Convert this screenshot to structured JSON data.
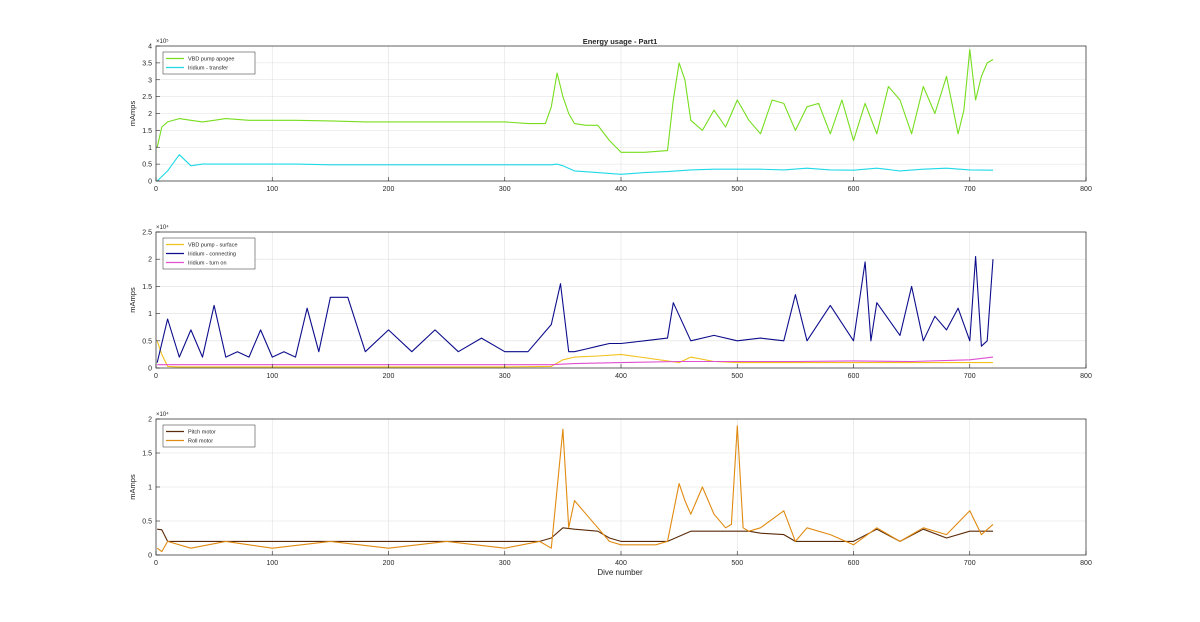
{
  "figure": {
    "title": "Energy usage - Part1",
    "xlabel": "Dive number"
  },
  "chart_data": [
    {
      "type": "line",
      "title": "Energy usage - Part1",
      "xlabel": "",
      "ylabel": "mAmps",
      "xlim": [
        0,
        800
      ],
      "ylim": [
        0,
        400000
      ],
      "xticks": [
        0,
        100,
        200,
        300,
        400,
        500,
        600,
        700,
        800
      ],
      "yticks": [
        0,
        50000,
        100000,
        150000,
        200000,
        250000,
        300000,
        350000,
        400000
      ],
      "ytick_labels": [
        "0",
        "0.5",
        "1",
        "1.5",
        "2",
        "2.5",
        "3",
        "3.5",
        "4"
      ],
      "exponent_label": "×10⁵",
      "grid": true,
      "legend": "top-left",
      "series": [
        {
          "name": "VBD pump apogee",
          "color": "#77dd1f",
          "x": [
            1,
            5,
            10,
            20,
            30,
            40,
            50,
            60,
            80,
            100,
            120,
            150,
            180,
            200,
            230,
            250,
            280,
            300,
            320,
            335,
            340,
            345,
            350,
            355,
            360,
            370,
            380,
            390,
            400,
            420,
            440,
            445,
            450,
            455,
            460,
            470,
            480,
            490,
            500,
            510,
            520,
            530,
            540,
            550,
            560,
            570,
            580,
            590,
            600,
            610,
            620,
            630,
            640,
            650,
            660,
            670,
            680,
            690,
            695,
            700,
            705,
            710,
            715,
            720
          ],
          "y": [
            100000,
            160000,
            175000,
            185000,
            180000,
            175000,
            180000,
            185000,
            180000,
            180000,
            180000,
            178000,
            175000,
            175000,
            175000,
            175000,
            175000,
            175000,
            170000,
            170000,
            220000,
            320000,
            250000,
            200000,
            170000,
            165000,
            165000,
            120000,
            85000,
            85000,
            90000,
            240000,
            350000,
            300000,
            180000,
            150000,
            210000,
            160000,
            240000,
            180000,
            140000,
            240000,
            230000,
            150000,
            220000,
            230000,
            140000,
            240000,
            120000,
            230000,
            140000,
            280000,
            240000,
            140000,
            280000,
            200000,
            310000,
            140000,
            210000,
            390000,
            240000,
            310000,
            350000,
            360000
          ]
        },
        {
          "name": "Iridium - transfer",
          "color": "#1fd9e8",
          "x": [
            1,
            10,
            20,
            30,
            40,
            50,
            60,
            80,
            100,
            120,
            150,
            180,
            200,
            230,
            260,
            290,
            320,
            340,
            345,
            350,
            360,
            380,
            400,
            420,
            440,
            460,
            480,
            500,
            520,
            540,
            560,
            580,
            600,
            620,
            640,
            660,
            680,
            700,
            720
          ],
          "y": [
            0,
            30000,
            78000,
            45000,
            50000,
            50000,
            50000,
            50000,
            50000,
            50000,
            48000,
            48000,
            48000,
            48000,
            48000,
            48000,
            48000,
            48000,
            50000,
            45000,
            30000,
            25000,
            20000,
            25000,
            28000,
            33000,
            35000,
            35000,
            35000,
            33000,
            38000,
            33000,
            32000,
            38000,
            30000,
            35000,
            38000,
            33000,
            32000
          ]
        }
      ]
    },
    {
      "type": "line",
      "title": "",
      "xlabel": "",
      "ylabel": "mAmps",
      "xlim": [
        0,
        800
      ],
      "ylim": [
        0,
        25000
      ],
      "xticks": [
        0,
        100,
        200,
        300,
        400,
        500,
        600,
        700,
        800
      ],
      "yticks": [
        0,
        5000,
        10000,
        15000,
        20000,
        25000
      ],
      "ytick_labels": [
        "0",
        "0.5",
        "1",
        "1.5",
        "2",
        "2.5"
      ],
      "exponent_label": "×10⁴",
      "grid": true,
      "legend": "top-left",
      "series": [
        {
          "name": "VBD pump - surface",
          "color": "#f2c11b",
          "x": [
            1,
            5,
            10,
            20,
            50,
            100,
            150,
            200,
            250,
            300,
            340,
            350,
            360,
            380,
            400,
            450,
            460,
            480,
            500,
            550,
            600,
            650,
            700,
            720
          ],
          "y": [
            5000,
            2500,
            300,
            200,
            200,
            200,
            200,
            200,
            200,
            200,
            300,
            1500,
            2000,
            2200,
            2500,
            1000,
            2000,
            1200,
            1000,
            1000,
            1000,
            1000,
            1000,
            1000
          ]
        },
        {
          "name": "Iridium - connecting",
          "color": "#0d0d8c",
          "x": [
            1,
            10,
            20,
            30,
            40,
            50,
            60,
            70,
            80,
            90,
            100,
            110,
            120,
            130,
            140,
            150,
            165,
            180,
            200,
            220,
            240,
            260,
            280,
            300,
            320,
            340,
            348,
            355,
            360,
            370,
            380,
            390,
            400,
            420,
            440,
            445,
            460,
            480,
            500,
            520,
            540,
            550,
            560,
            580,
            600,
            610,
            615,
            620,
            640,
            650,
            660,
            670,
            680,
            690,
            700,
            705,
            710,
            715,
            720
          ],
          "y": [
            1000,
            9000,
            2000,
            7000,
            2000,
            11500,
            2000,
            3000,
            2000,
            7000,
            2000,
            3000,
            2000,
            11000,
            3000,
            13000,
            13000,
            3000,
            7000,
            3000,
            7000,
            3000,
            5500,
            3000,
            3000,
            8000,
            15500,
            3000,
            3000,
            3500,
            4000,
            4500,
            4500,
            5000,
            5500,
            12000,
            5000,
            6000,
            5000,
            5500,
            5000,
            13500,
            5000,
            11500,
            5000,
            19500,
            5000,
            12000,
            6000,
            15000,
            5000,
            9500,
            7000,
            11000,
            5000,
            20500,
            4000,
            5000,
            20000
          ]
        },
        {
          "name": "Iridium - turn on",
          "color": "#e04fd0",
          "x": [
            1,
            50,
            100,
            200,
            300,
            340,
            360,
            400,
            450,
            500,
            550,
            600,
            650,
            700,
            720
          ],
          "y": [
            600,
            600,
            600,
            600,
            600,
            600,
            800,
            1000,
            1200,
            1200,
            1200,
            1300,
            1200,
            1500,
            2000
          ]
        }
      ]
    },
    {
      "type": "line",
      "title": "",
      "xlabel": "Dive number",
      "ylabel": "mAmps",
      "xlim": [
        0,
        800
      ],
      "ylim": [
        0,
        20000
      ],
      "xticks": [
        0,
        100,
        200,
        300,
        400,
        500,
        600,
        700,
        800
      ],
      "yticks": [
        0,
        5000,
        10000,
        15000,
        20000
      ],
      "ytick_labels": [
        "0",
        "0.5",
        "1",
        "1.5",
        "2"
      ],
      "exponent_label": "×10⁴",
      "grid": true,
      "legend": "top-left",
      "series": [
        {
          "name": "Pitch motor",
          "color": "#5a2a0a",
          "x": [
            1,
            5,
            10,
            50,
            100,
            150,
            200,
            250,
            300,
            330,
            340,
            350,
            360,
            380,
            390,
            400,
            420,
            440,
            460,
            480,
            500,
            510,
            520,
            540,
            550,
            560,
            580,
            600,
            620,
            640,
            660,
            680,
            700,
            720
          ],
          "y": [
            3800,
            3700,
            2000,
            2000,
            2000,
            2000,
            2000,
            2000,
            2000,
            2000,
            2500,
            4000,
            3800,
            3500,
            2500,
            2000,
            2000,
            2000,
            3500,
            3500,
            3500,
            3500,
            3200,
            3000,
            2000,
            2000,
            2000,
            2000,
            3800,
            2000,
            3800,
            2500,
            3500,
            3500
          ]
        },
        {
          "name": "Roll motor",
          "color": "#e08a10",
          "x": [
            1,
            5,
            10,
            30,
            60,
            100,
            150,
            200,
            250,
            300,
            330,
            340,
            350,
            355,
            360,
            370,
            380,
            390,
            400,
            430,
            440,
            450,
            455,
            460,
            470,
            480,
            490,
            495,
            500,
            505,
            510,
            520,
            540,
            550,
            560,
            580,
            600,
            620,
            640,
            660,
            680,
            700,
            710,
            720
          ],
          "y": [
            1000,
            500,
            2000,
            1000,
            2000,
            1000,
            2000,
            1000,
            2000,
            1000,
            2000,
            1000,
            18500,
            4000,
            8000,
            6000,
            4000,
            2000,
            1500,
            1500,
            2000,
            10500,
            8000,
            6000,
            10000,
            6000,
            4000,
            4500,
            19000,
            4000,
            3500,
            4000,
            6500,
            2000,
            4000,
            3000,
            1500,
            4000,
            2000,
            4000,
            3000,
            6500,
            3000,
            4500
          ]
        }
      ]
    }
  ]
}
